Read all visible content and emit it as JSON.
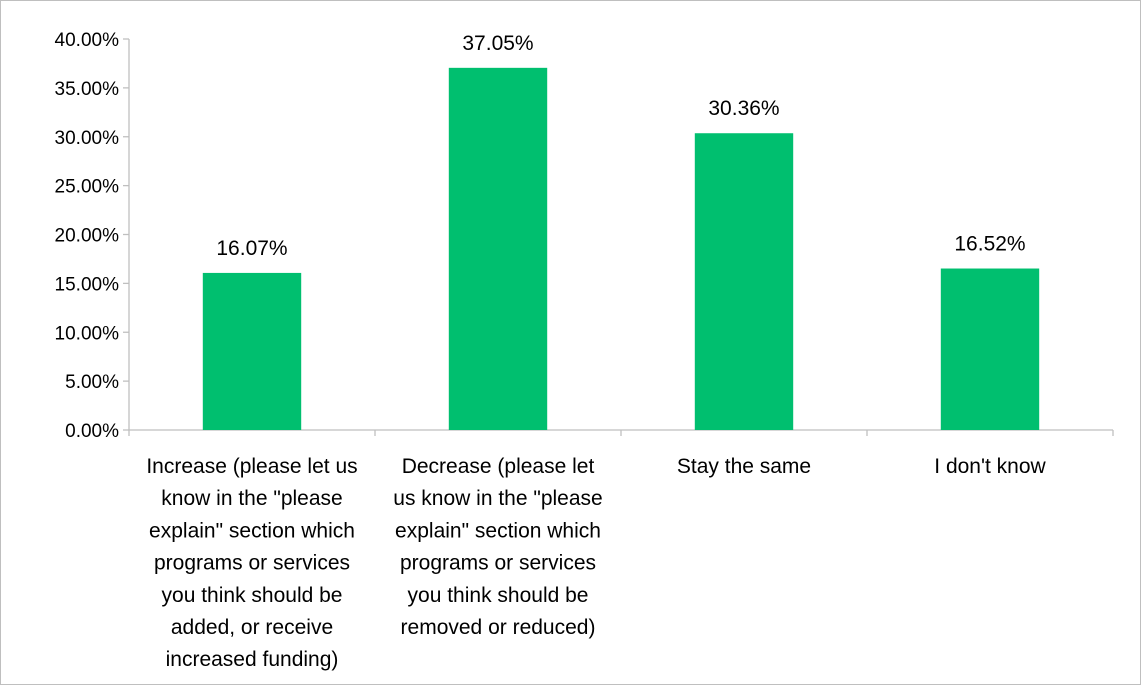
{
  "chart_data": {
    "type": "bar",
    "title": "",
    "xlabel": "",
    "ylabel": "",
    "categories": [
      [
        "Increase (please let us",
        "know in the \"please",
        "explain\" section which",
        "programs or services",
        "you think should be",
        "added, or receive",
        "increased funding)"
      ],
      [
        "Decrease (please let",
        "us know in the \"please",
        "explain\" section which",
        "programs or services",
        "you think should be",
        "removed or reduced)"
      ],
      [
        "Stay the same"
      ],
      [
        "I don't know"
      ]
    ],
    "values": [
      16.07,
      37.05,
      30.36,
      16.52
    ],
    "data_labels": [
      "16.07%",
      "37.05%",
      "30.36%",
      "16.52%"
    ],
    "ylim": [
      0,
      40
    ],
    "y_ticks": [
      0,
      5,
      10,
      15,
      20,
      25,
      30,
      35,
      40
    ],
    "y_tick_labels": [
      "0.00%",
      "5.00%",
      "10.00%",
      "15.00%",
      "20.00%",
      "25.00%",
      "30.00%",
      "35.00%",
      "40.00%"
    ],
    "grid": false,
    "legend": "none",
    "bar_color": "#00bf6f",
    "axis_color": "#bfbfbf"
  }
}
